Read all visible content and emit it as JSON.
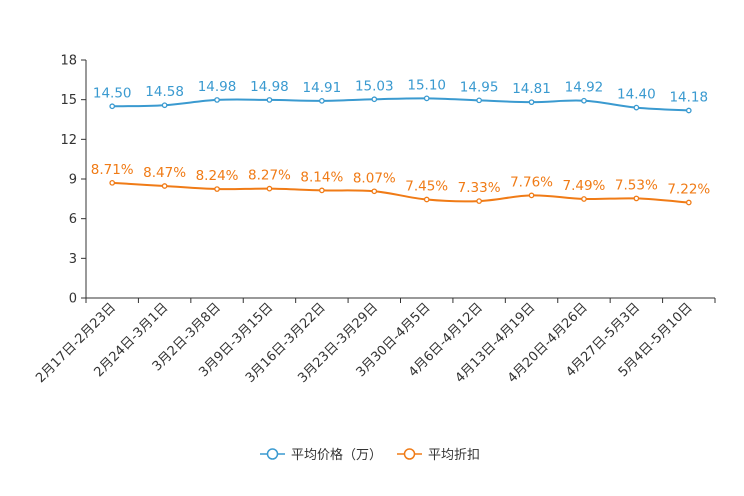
{
  "chart_data": {
    "type": "line",
    "categories": [
      "2月17日-2月23日",
      "2月24日-3月1日",
      "3月2日-3月8日",
      "3月9日-3月15日",
      "3月16日-3月22日",
      "3月23日-3月29日",
      "3月30日-4月5日",
      "4月6日-4月12日",
      "4月13日-4月19日",
      "4月20日-4月26日",
      "4月27日-5月3日",
      "5月4日-5月10日"
    ],
    "ylim": [
      0,
      18
    ],
    "yticks": [
      0,
      3,
      6,
      9,
      12,
      15,
      18
    ],
    "series": [
      {
        "name": "平均价格（万）",
        "color": "#3a9ad0",
        "values": [
          14.5,
          14.58,
          14.98,
          14.98,
          14.91,
          15.03,
          15.1,
          14.95,
          14.81,
          14.92,
          14.4,
          14.18
        ],
        "labels": [
          "14.50",
          "14.58",
          "14.98",
          "14.98",
          "14.91",
          "15.03",
          "15.10",
          "14.95",
          "14.81",
          "14.92",
          "14.40",
          "14.18"
        ]
      },
      {
        "name": "平均折扣",
        "color": "#f07b16",
        "values": [
          8.71,
          8.47,
          8.24,
          8.27,
          8.14,
          8.07,
          7.45,
          7.33,
          7.76,
          7.49,
          7.53,
          7.22
        ],
        "labels": [
          "8.71%",
          "8.47%",
          "8.24%",
          "8.27%",
          "8.14%",
          "8.07%",
          "7.45%",
          "7.33%",
          "7.76%",
          "7.49%",
          "7.53%",
          "7.22%"
        ]
      }
    ],
    "legend": "bottom-center",
    "grid": false
  }
}
